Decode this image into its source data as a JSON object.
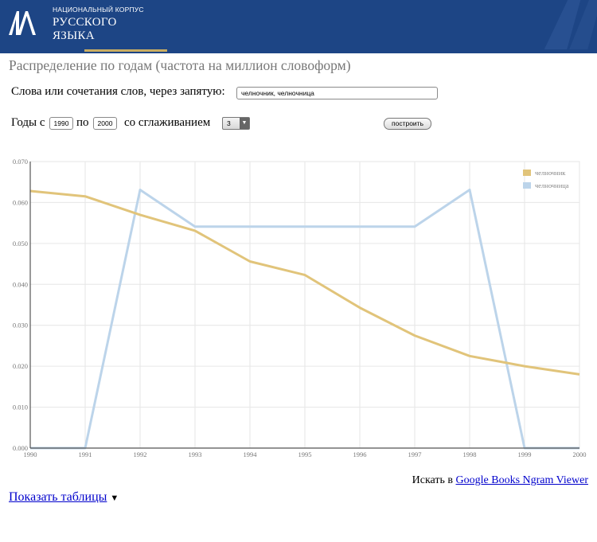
{
  "header": {
    "logo_text": "НКРЯ",
    "small_title": "НАЦИОНАЛЬНЫЙ КОРПУС",
    "title_line1": "РУССКОГО",
    "title_line2": "ЯЗЫКА",
    "colors": {
      "background": "#1d4585",
      "accent": "#c9ad62"
    }
  },
  "page_title": "Распределение по годам (частота на миллион словоформ)",
  "form": {
    "words_label": "Слова или сочетания слов, через запятую:",
    "words_value": "челночник, челночница",
    "years_from_label": "Годы с",
    "year_from": "1990",
    "years_to_label": "по",
    "year_to": "2000",
    "smoothing_label": "со сглаживанием",
    "smoothing_value": "3",
    "build_button": "построить"
  },
  "chart_data": {
    "type": "line",
    "x": [
      1990,
      1991,
      1992,
      1993,
      1994,
      1995,
      1996,
      1997,
      1998,
      1999,
      2000
    ],
    "x_tick_labels": [
      "1990",
      "1991",
      "1992",
      "1993",
      "1994",
      "1995",
      "1996",
      "1997",
      "1998",
      "1999",
      "2000"
    ],
    "xlim": [
      1990,
      2000
    ],
    "ylim": [
      0,
      0.07
    ],
    "y_ticks": [
      0,
      0.01,
      0.02,
      0.03,
      0.04,
      0.05,
      0.06,
      0.07
    ],
    "y_tick_labels": [
      "0.000",
      "0.010",
      "0.020",
      "0.030",
      "0.040",
      "0.050",
      "0.060",
      "0.070"
    ],
    "grid": true,
    "legend_position": "top-right",
    "series": [
      {
        "name": "челночник",
        "color": "#e1c47a",
        "values": [
          0.0628,
          0.0615,
          0.057,
          0.0531,
          0.0456,
          0.0423,
          0.0343,
          0.0275,
          0.0225,
          0.02,
          0.018
        ]
      },
      {
        "name": "челночница",
        "color": "#bcd4ea",
        "values": [
          0,
          0,
          0.0631,
          0.0541,
          0.0541,
          0.0541,
          0.0541,
          0.0541,
          0.0631,
          0,
          0
        ]
      }
    ]
  },
  "footer": {
    "search_prefix": "Искать в",
    "search_link": "Google Books Ngram Viewer",
    "show_tables": "Показать таблицы",
    "show_tables_arrow": "▼"
  }
}
